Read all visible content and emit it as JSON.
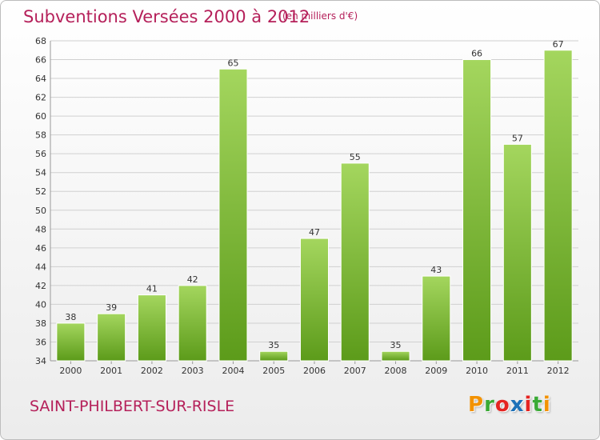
{
  "header": {
    "title": "Subventions Versées 2000 à 2012",
    "subtitle": "(en milliers d'€)"
  },
  "footer": {
    "commune": "SAINT-PHILBERT-SUR-RISLE",
    "logo_text": "Proxiti",
    "logo_colors": [
      "#f39200",
      "#3aaa35",
      "#e52421",
      "#1d71b8",
      "#e52421",
      "#3aaa35",
      "#f39200"
    ]
  },
  "chart_data": {
    "type": "bar",
    "categories": [
      "2000",
      "2001",
      "2002",
      "2003",
      "2004",
      "2005",
      "2006",
      "2007",
      "2008",
      "2009",
      "2010",
      "2011",
      "2012"
    ],
    "values": [
      38,
      39,
      41,
      42,
      65,
      35,
      47,
      55,
      35,
      43,
      66,
      57,
      67
    ],
    "ylim": [
      34,
      68
    ],
    "yticks": [
      34,
      36,
      38,
      40,
      42,
      44,
      46,
      48,
      50,
      52,
      54,
      56,
      58,
      60,
      62,
      64,
      66,
      68
    ],
    "grid": true,
    "bar_color_top": "#a4d65e",
    "bar_color_bottom": "#5c9b1a"
  }
}
